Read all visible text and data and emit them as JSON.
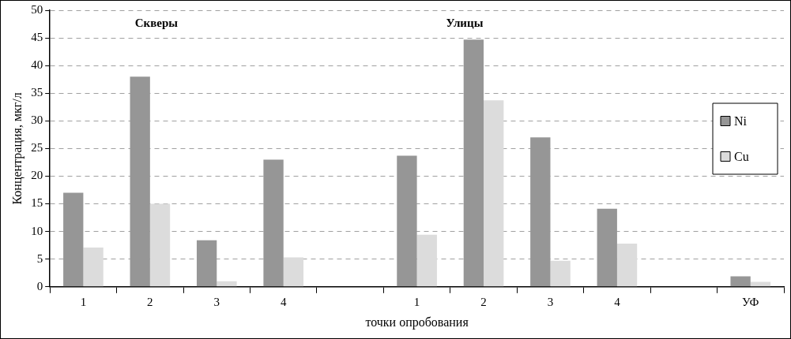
{
  "chart_data": {
    "type": "bar",
    "xlabel": "точки опробования",
    "ylabel": "Концентрация, мкг/л",
    "categories": [
      "1",
      "2",
      "3",
      "4",
      null,
      "1",
      "2",
      "3",
      "4",
      null,
      "УФ"
    ],
    "series": [
      {
        "name": "Ni",
        "color": "#969696",
        "values": [
          17,
          38,
          8.4,
          23,
          null,
          23.7,
          44.7,
          27,
          14.1,
          null,
          1.9
        ]
      },
      {
        "name": "Cu",
        "color": "#dcdcdc",
        "values": [
          7.1,
          15,
          1,
          5.3,
          null,
          9.4,
          33.7,
          4.7,
          7.8,
          null,
          0.9
        ]
      }
    ],
    "annotations": [
      "Скверы",
      "Улицы"
    ],
    "ylim": [
      0,
      50
    ],
    "yticks": [
      0,
      5,
      10,
      15,
      20,
      25,
      30,
      35,
      40,
      45,
      50
    ],
    "grid": "y",
    "legend": "right"
  }
}
